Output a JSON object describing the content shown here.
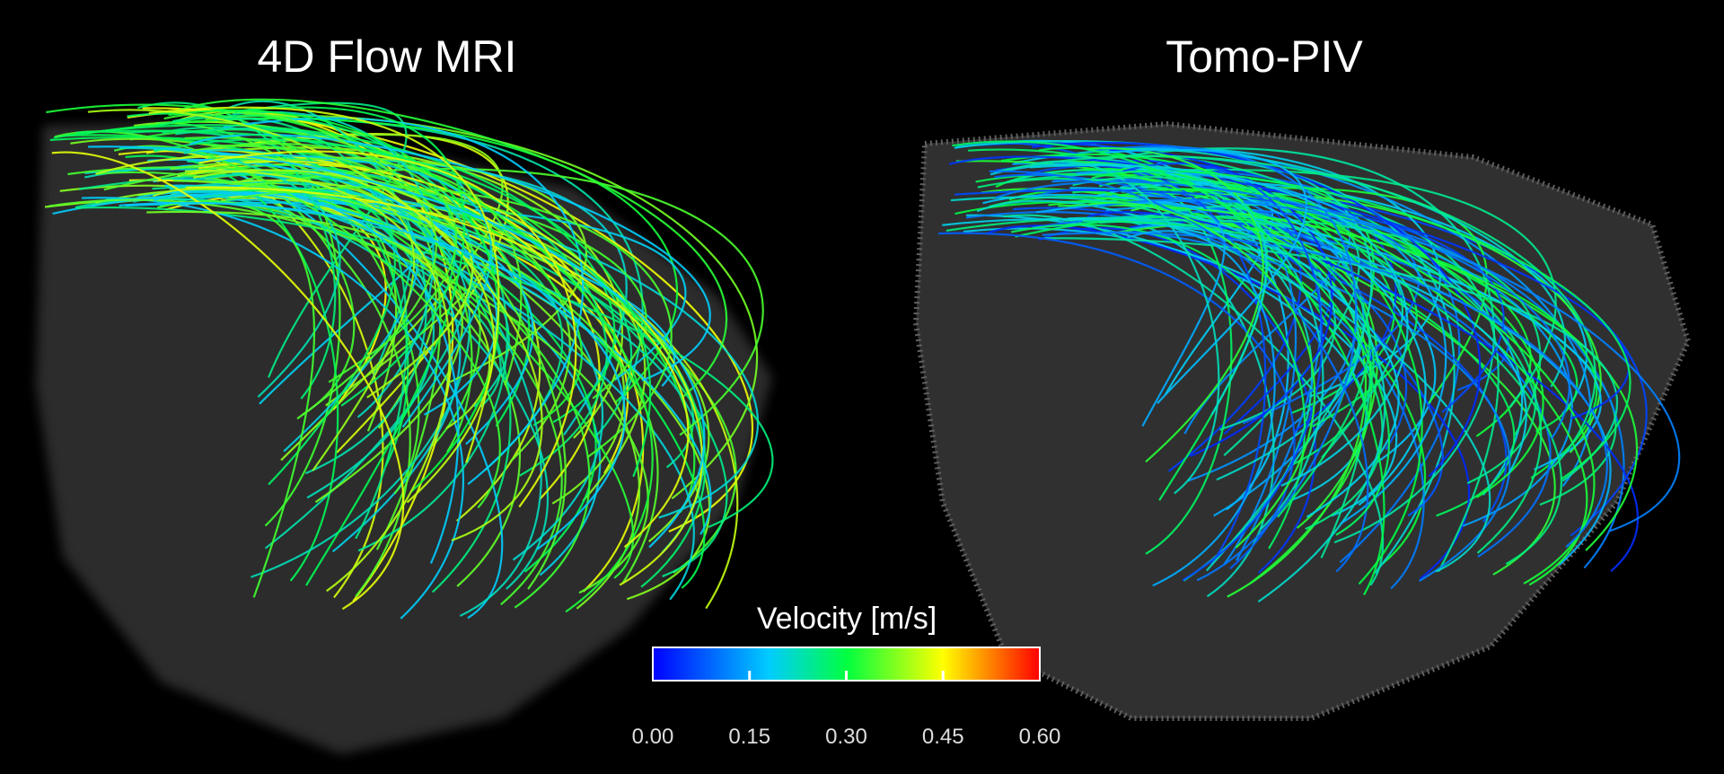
{
  "panels": [
    {
      "title": "4D Flow MRI"
    },
    {
      "title": "Tomo-PIV"
    }
  ],
  "colorbar": {
    "title": "Velocity [m/s]",
    "range": [
      0,
      0.6
    ],
    "ticks": [
      {
        "value": 0,
        "label": "0.00"
      },
      {
        "value": 0.15,
        "label": "0.15"
      },
      {
        "value": 0.3,
        "label": "0.30"
      },
      {
        "value": 0.45,
        "label": "0.45"
      },
      {
        "value": 0.6,
        "label": "0.60"
      }
    ]
  }
}
